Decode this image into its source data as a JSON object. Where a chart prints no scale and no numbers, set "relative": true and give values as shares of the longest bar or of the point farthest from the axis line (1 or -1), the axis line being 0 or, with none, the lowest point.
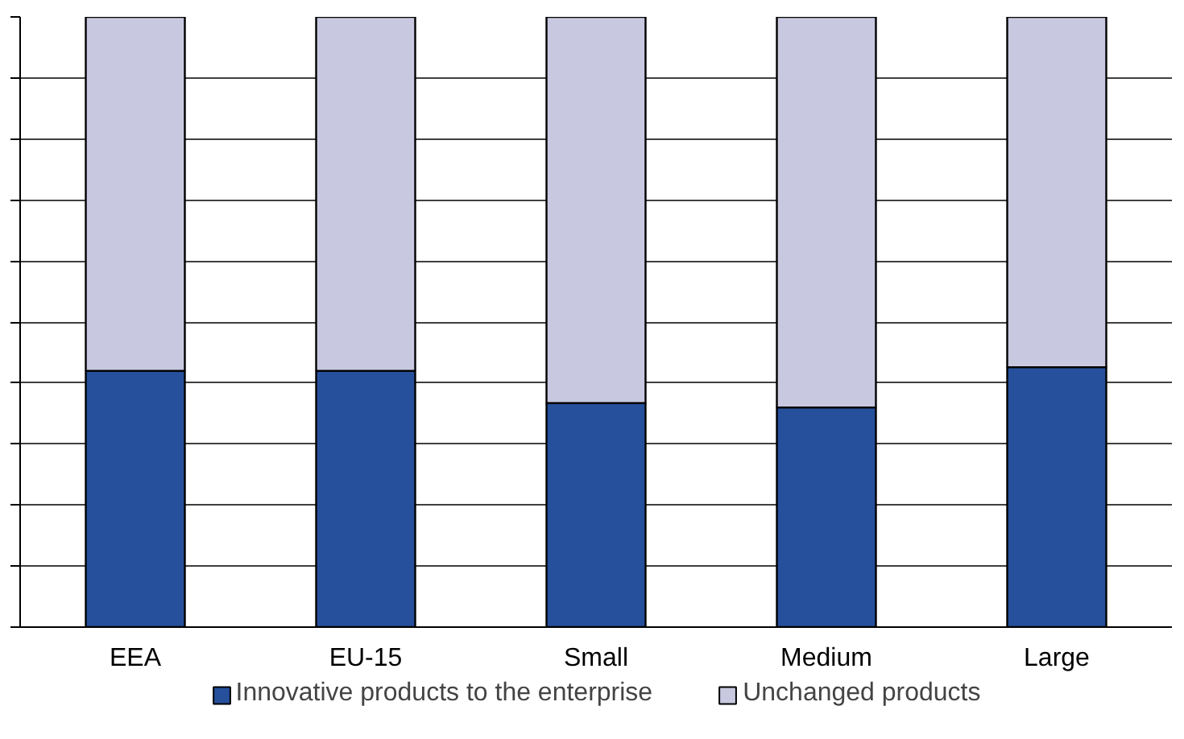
{
  "chart_data": {
    "type": "bar",
    "stacked": true,
    "relative": true,
    "categories": [
      "EEA",
      "EU-15",
      "Small",
      "Medium",
      "Large"
    ],
    "series": [
      {
        "name": "Innovative products to the enterprise",
        "color": "#26509c",
        "values": [
          0.42,
          0.42,
          0.367,
          0.36,
          0.426
        ]
      },
      {
        "name": "Unchanged products",
        "color": "#c8c8e0",
        "values": [
          0.58,
          0.58,
          0.633,
          0.64,
          0.574
        ]
      }
    ],
    "grid": "y",
    "legend": "bottom"
  }
}
